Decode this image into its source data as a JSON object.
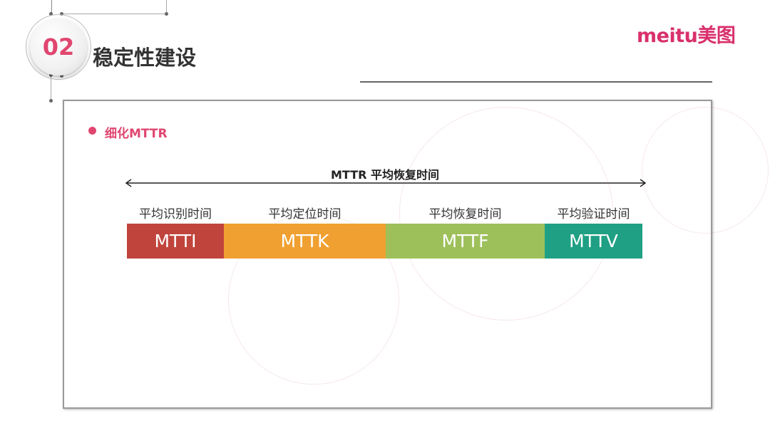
{
  "header": {
    "number": "02",
    "title": "稳定性建设",
    "logo": "meitu美图"
  },
  "section": {
    "bullet": "细化MTTR",
    "bullet_color": "#e0466f"
  },
  "diagram": {
    "span_label": "MTTR 平均恢复时间",
    "stages": [
      {
        "label": "平均识别时间",
        "code": "MTTI",
        "color": "#c0443c"
      },
      {
        "label": "平均定位时间",
        "code": "MTTK",
        "color": "#f0a030"
      },
      {
        "label": "平均恢复时间",
        "code": "MTTF",
        "color": "#9dc05a"
      },
      {
        "label": "平均验证时间",
        "code": "MTTV",
        "color": "#1fa084"
      }
    ]
  }
}
